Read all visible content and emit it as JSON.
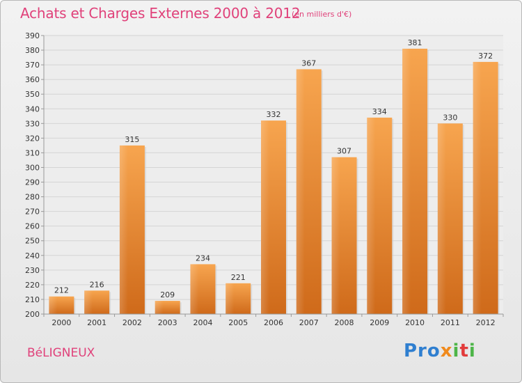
{
  "header": {
    "title": "Achats et Charges Externes 2000 à 2012",
    "subtitle": "(en milliers d'€)"
  },
  "footer": {
    "commune": "BéLIGNEUX",
    "logo": "Proxiti"
  },
  "chart_data": {
    "type": "bar",
    "title": "Achats et Charges Externes 2000 à 2012",
    "subtitle": "(en milliers d'€)",
    "categories": [
      "2000",
      "2001",
      "2002",
      "2003",
      "2004",
      "2005",
      "2006",
      "2007",
      "2008",
      "2009",
      "2010",
      "2011",
      "2012"
    ],
    "values": [
      212,
      216,
      315,
      209,
      234,
      221,
      332,
      367,
      307,
      334,
      381,
      330,
      372
    ],
    "ylim": [
      200,
      390
    ],
    "yticks": [
      200,
      210,
      220,
      230,
      240,
      250,
      260,
      270,
      280,
      290,
      300,
      310,
      320,
      330,
      340,
      350,
      360,
      370,
      380,
      390
    ],
    "grid": true,
    "bar_color": "#f39a3e"
  }
}
